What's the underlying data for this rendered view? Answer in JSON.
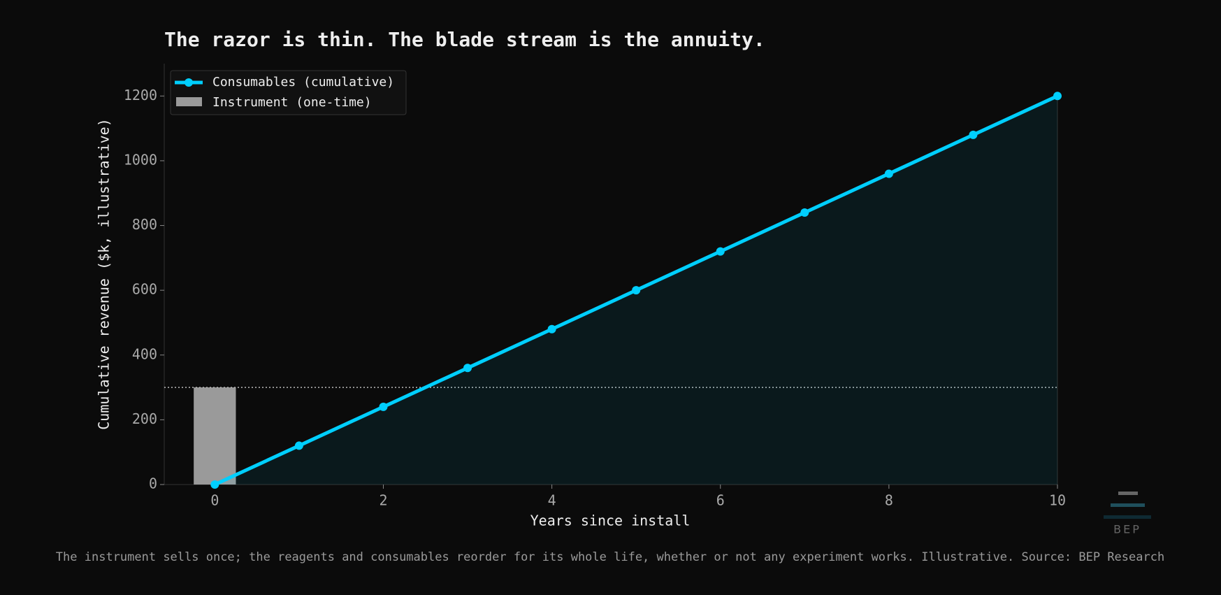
{
  "chart_data": {
    "type": "line",
    "title": "The razor is thin. The blade stream is the annuity.",
    "x_label": "Years since install",
    "y_label": "Cumulative revenue ($k, illustrative)",
    "x": [
      0,
      1,
      2,
      3,
      4,
      5,
      6,
      7,
      8,
      9,
      10
    ],
    "series": [
      {
        "name": "Consumables (cumulative)",
        "color": "#00cfff",
        "values": [
          0,
          120,
          240,
          360,
          480,
          600,
          720,
          840,
          960,
          1080,
          1200
        ]
      }
    ],
    "bar": {
      "name": "Instrument (one-time)",
      "color": "#9a9a9a",
      "x": 0,
      "value": 300
    },
    "xlim": [
      -0.6,
      10
    ],
    "ylim": [
      0,
      1300
    ],
    "xticks": [
      0,
      2,
      4,
      6,
      8,
      10
    ],
    "yticks": [
      0,
      200,
      400,
      600,
      800,
      1000,
      1200
    ],
    "legend": "upper left",
    "footnote": "The instrument sells once; the reagents and consumables reorder for its whole life, whether or not any experiment works. Illustrative.  Source: BEP Research",
    "logo": "BEP"
  }
}
